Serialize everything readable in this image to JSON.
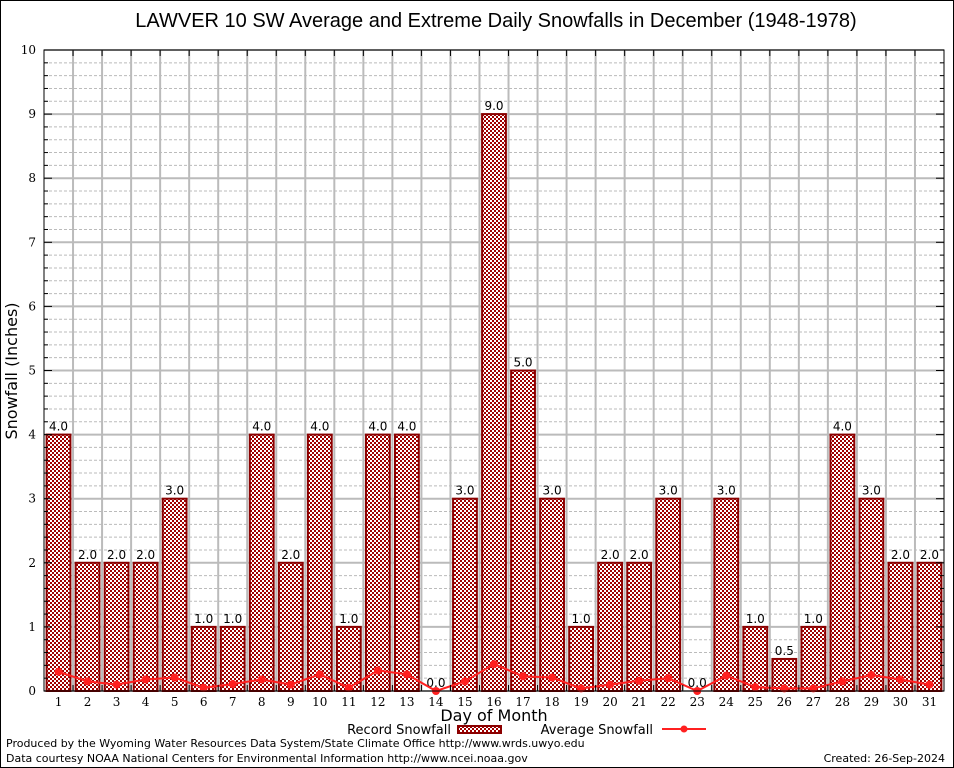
{
  "chart_data": {
    "type": "bar",
    "title": "LAWVER 10 SW Average and Extreme Daily Snowfalls in December (1948-1978)",
    "xlabel": "Day of Month",
    "ylabel": "Snowfall (Inches)",
    "ylim": [
      0,
      10
    ],
    "yticks": [
      "0",
      "1",
      "2",
      "3",
      "4",
      "5",
      "6",
      "7",
      "8",
      "9",
      "10"
    ],
    "grid": true,
    "categories": [
      "1",
      "2",
      "3",
      "4",
      "5",
      "6",
      "7",
      "8",
      "9",
      "10",
      "11",
      "12",
      "13",
      "14",
      "15",
      "16",
      "17",
      "18",
      "19",
      "20",
      "21",
      "22",
      "23",
      "24",
      "25",
      "26",
      "27",
      "28",
      "29",
      "30",
      "31"
    ],
    "series": [
      {
        "name": "Record Snowfall",
        "kind": "bar",
        "color": "#8b0000",
        "values": [
          4.0,
          2.0,
          2.0,
          2.0,
          3.0,
          1.0,
          1.0,
          4.0,
          2.0,
          4.0,
          1.0,
          4.0,
          4.0,
          0.0,
          3.0,
          9.0,
          5.0,
          3.0,
          1.0,
          2.0,
          2.0,
          3.0,
          0.0,
          3.0,
          1.0,
          0.5,
          1.0,
          4.0,
          3.0,
          2.0,
          2.0
        ],
        "labels": [
          "4.0",
          "2.0",
          "2.0",
          "2.0",
          "3.0",
          "1.0",
          "1.0",
          "4.0",
          "2.0",
          "4.0",
          "1.0",
          "4.0",
          "4.0",
          "0.0",
          "3.0",
          "9.0",
          "5.0",
          "3.0",
          "1.0",
          "2.0",
          "2.0",
          "3.0",
          "0.0",
          "3.0",
          "1.0",
          "0.5",
          "1.0",
          "4.0",
          "3.0",
          "2.0",
          "2.0"
        ]
      },
      {
        "name": "Average Snowfall",
        "kind": "line",
        "color": "#ff2020",
        "values": [
          0.3,
          0.15,
          0.1,
          0.18,
          0.21,
          0.05,
          0.11,
          0.18,
          0.1,
          0.26,
          0.05,
          0.32,
          0.26,
          0.0,
          0.15,
          0.42,
          0.23,
          0.21,
          0.04,
          0.1,
          0.16,
          0.2,
          0.0,
          0.24,
          0.06,
          0.04,
          0.04,
          0.15,
          0.25,
          0.18,
          0.1
        ]
      }
    ],
    "legend": "bottom-center"
  },
  "footer": {
    "produced_by": "Produced by the Wyoming Water Resources Data System/State Climate Office http://www.wrds.uwyo.edu",
    "data_courtesy": "Data courtesy NOAA National Centers for Environmental Information http://www.ncei.noaa.gov",
    "created": "Created:  26-Sep-2024"
  }
}
